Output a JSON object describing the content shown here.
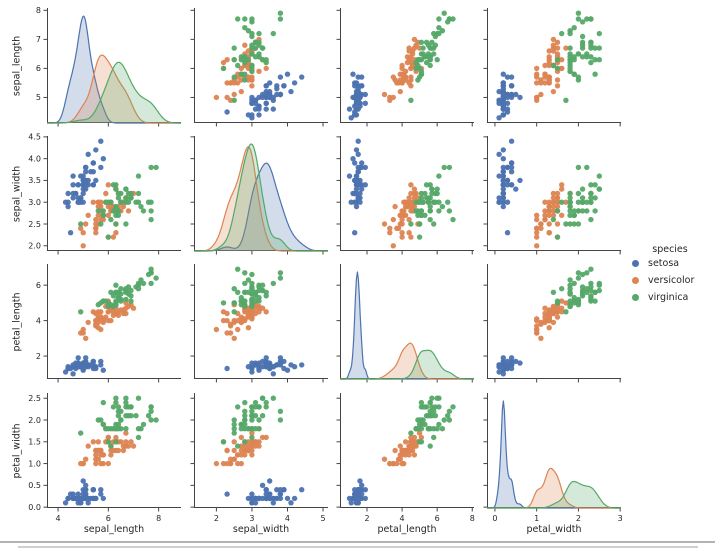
{
  "chart_data": {
    "type": "scatter-matrix",
    "diagonal": "kde",
    "variables": [
      "sepal_length",
      "sepal_width",
      "petal_length",
      "petal_width"
    ],
    "legend": {
      "title": "species",
      "entries": [
        {
          "label": "setosa",
          "color": "#4c72b0"
        },
        {
          "label": "versicolor",
          "color": "#dd8452"
        },
        {
          "label": "virginica",
          "color": "#55a868"
        }
      ]
    },
    "axes": {
      "sepal_length": {
        "xlim": [
          3.56,
          8.89
        ],
        "ylim": [
          4.12,
          8.08
        ],
        "xticks": [
          "4",
          "6",
          "8"
        ],
        "yticks": [
          "5",
          "6",
          "7",
          "8"
        ]
      },
      "sepal_width": {
        "xlim": [
          1.37,
          5.14
        ],
        "ylim": [
          1.88,
          4.52
        ],
        "xticks": [
          "2",
          "3",
          "4",
          "5"
        ],
        "yticks": [
          "2.0",
          "2.5",
          "3.0",
          "3.5",
          "4.0",
          "4.5"
        ]
      },
      "petal_length": {
        "xlim": [
          0.46,
          8.1
        ],
        "ylim": [
          0.705,
          7.195
        ],
        "xticks": [
          "2",
          "4",
          "6",
          "8"
        ],
        "yticks": [
          "2",
          "4",
          "6"
        ]
      },
      "petal_width": {
        "xlim": [
          -0.19,
          3.02
        ],
        "ylim": [
          -0.02,
          2.62
        ],
        "xticks": [
          "0",
          "1",
          "2",
          "3"
        ],
        "yticks": [
          "0.0",
          "0.5",
          "1.0",
          "1.5",
          "2.0",
          "2.5"
        ]
      }
    },
    "data": {
      "columns": [
        "sepal_length",
        "sepal_width",
        "petal_length",
        "petal_width",
        "species"
      ],
      "rows": [
        [
          5.1,
          3.5,
          1.4,
          0.2,
          "setosa"
        ],
        [
          4.9,
          3.0,
          1.4,
          0.2,
          "setosa"
        ],
        [
          4.7,
          3.2,
          1.3,
          0.2,
          "setosa"
        ],
        [
          4.6,
          3.1,
          1.5,
          0.2,
          "setosa"
        ],
        [
          5.0,
          3.6,
          1.4,
          0.2,
          "setosa"
        ],
        [
          5.4,
          3.9,
          1.7,
          0.4,
          "setosa"
        ],
        [
          4.6,
          3.4,
          1.4,
          0.3,
          "setosa"
        ],
        [
          5.0,
          3.4,
          1.5,
          0.2,
          "setosa"
        ],
        [
          4.4,
          2.9,
          1.4,
          0.2,
          "setosa"
        ],
        [
          4.9,
          3.1,
          1.5,
          0.1,
          "setosa"
        ],
        [
          5.4,
          3.7,
          1.5,
          0.2,
          "setosa"
        ],
        [
          4.8,
          3.4,
          1.6,
          0.2,
          "setosa"
        ],
        [
          4.8,
          3.0,
          1.4,
          0.1,
          "setosa"
        ],
        [
          4.3,
          3.0,
          1.1,
          0.1,
          "setosa"
        ],
        [
          5.8,
          4.0,
          1.2,
          0.2,
          "setosa"
        ],
        [
          5.7,
          4.4,
          1.5,
          0.4,
          "setosa"
        ],
        [
          5.4,
          3.9,
          1.3,
          0.4,
          "setosa"
        ],
        [
          5.1,
          3.5,
          1.4,
          0.3,
          "setosa"
        ],
        [
          5.7,
          3.8,
          1.7,
          0.3,
          "setosa"
        ],
        [
          5.1,
          3.8,
          1.5,
          0.3,
          "setosa"
        ],
        [
          5.4,
          3.4,
          1.7,
          0.2,
          "setosa"
        ],
        [
          5.1,
          3.7,
          1.5,
          0.4,
          "setosa"
        ],
        [
          4.6,
          3.6,
          1.0,
          0.2,
          "setosa"
        ],
        [
          5.1,
          3.3,
          1.7,
          0.5,
          "setosa"
        ],
        [
          4.8,
          3.4,
          1.9,
          0.2,
          "setosa"
        ],
        [
          5.0,
          3.0,
          1.6,
          0.2,
          "setosa"
        ],
        [
          5.0,
          3.4,
          1.6,
          0.4,
          "setosa"
        ],
        [
          5.2,
          3.5,
          1.5,
          0.2,
          "setosa"
        ],
        [
          5.2,
          3.4,
          1.4,
          0.2,
          "setosa"
        ],
        [
          4.7,
          3.2,
          1.6,
          0.2,
          "setosa"
        ],
        [
          4.8,
          3.1,
          1.6,
          0.2,
          "setosa"
        ],
        [
          5.4,
          3.4,
          1.5,
          0.4,
          "setosa"
        ],
        [
          5.2,
          4.1,
          1.5,
          0.1,
          "setosa"
        ],
        [
          5.5,
          4.2,
          1.4,
          0.2,
          "setosa"
        ],
        [
          4.9,
          3.1,
          1.5,
          0.2,
          "setosa"
        ],
        [
          5.0,
          3.2,
          1.2,
          0.2,
          "setosa"
        ],
        [
          5.5,
          3.5,
          1.3,
          0.2,
          "setosa"
        ],
        [
          4.9,
          3.6,
          1.4,
          0.1,
          "setosa"
        ],
        [
          4.4,
          3.0,
          1.3,
          0.2,
          "setosa"
        ],
        [
          5.1,
          3.4,
          1.5,
          0.2,
          "setosa"
        ],
        [
          5.0,
          3.5,
          1.3,
          0.3,
          "setosa"
        ],
        [
          4.5,
          2.3,
          1.3,
          0.3,
          "setosa"
        ],
        [
          4.4,
          3.2,
          1.3,
          0.2,
          "setosa"
        ],
        [
          5.0,
          3.5,
          1.6,
          0.6,
          "setosa"
        ],
        [
          5.1,
          3.8,
          1.9,
          0.4,
          "setosa"
        ],
        [
          4.8,
          3.0,
          1.4,
          0.3,
          "setosa"
        ],
        [
          5.1,
          3.8,
          1.6,
          0.2,
          "setosa"
        ],
        [
          4.6,
          3.2,
          1.4,
          0.2,
          "setosa"
        ],
        [
          5.3,
          3.7,
          1.5,
          0.2,
          "setosa"
        ],
        [
          5.0,
          3.3,
          1.4,
          0.2,
          "setosa"
        ],
        [
          7.0,
          3.2,
          4.7,
          1.4,
          "versicolor"
        ],
        [
          6.4,
          3.2,
          4.5,
          1.5,
          "versicolor"
        ],
        [
          6.9,
          3.1,
          4.9,
          1.5,
          "versicolor"
        ],
        [
          5.5,
          2.3,
          4.0,
          1.3,
          "versicolor"
        ],
        [
          6.5,
          2.8,
          4.6,
          1.5,
          "versicolor"
        ],
        [
          5.7,
          2.8,
          4.5,
          1.3,
          "versicolor"
        ],
        [
          6.3,
          3.3,
          4.7,
          1.6,
          "versicolor"
        ],
        [
          4.9,
          2.4,
          3.3,
          1.0,
          "versicolor"
        ],
        [
          6.6,
          2.9,
          4.6,
          1.3,
          "versicolor"
        ],
        [
          5.2,
          2.7,
          3.9,
          1.4,
          "versicolor"
        ],
        [
          5.0,
          2.0,
          3.5,
          1.0,
          "versicolor"
        ],
        [
          5.9,
          3.0,
          4.2,
          1.5,
          "versicolor"
        ],
        [
          6.0,
          2.2,
          4.0,
          1.0,
          "versicolor"
        ],
        [
          6.1,
          2.9,
          4.7,
          1.4,
          "versicolor"
        ],
        [
          5.6,
          2.9,
          3.6,
          1.3,
          "versicolor"
        ],
        [
          6.7,
          3.1,
          4.4,
          1.4,
          "versicolor"
        ],
        [
          5.6,
          3.0,
          4.5,
          1.5,
          "versicolor"
        ],
        [
          5.8,
          2.7,
          4.1,
          1.0,
          "versicolor"
        ],
        [
          6.2,
          2.2,
          4.5,
          1.5,
          "versicolor"
        ],
        [
          5.6,
          2.5,
          3.9,
          1.1,
          "versicolor"
        ],
        [
          5.9,
          3.2,
          4.8,
          1.8,
          "versicolor"
        ],
        [
          6.1,
          2.8,
          4.0,
          1.3,
          "versicolor"
        ],
        [
          6.3,
          2.5,
          4.9,
          1.5,
          "versicolor"
        ],
        [
          6.1,
          2.8,
          4.7,
          1.2,
          "versicolor"
        ],
        [
          6.4,
          2.9,
          4.3,
          1.3,
          "versicolor"
        ],
        [
          6.6,
          3.0,
          4.4,
          1.4,
          "versicolor"
        ],
        [
          6.8,
          2.8,
          4.8,
          1.4,
          "versicolor"
        ],
        [
          6.7,
          3.0,
          5.0,
          1.7,
          "versicolor"
        ],
        [
          6.0,
          2.9,
          4.5,
          1.5,
          "versicolor"
        ],
        [
          5.7,
          2.6,
          3.5,
          1.0,
          "versicolor"
        ],
        [
          5.5,
          2.4,
          3.8,
          1.1,
          "versicolor"
        ],
        [
          5.5,
          2.4,
          3.7,
          1.0,
          "versicolor"
        ],
        [
          5.8,
          2.7,
          3.9,
          1.2,
          "versicolor"
        ],
        [
          6.0,
          2.7,
          5.1,
          1.6,
          "versicolor"
        ],
        [
          5.4,
          3.0,
          4.5,
          1.5,
          "versicolor"
        ],
        [
          6.0,
          3.4,
          4.5,
          1.6,
          "versicolor"
        ],
        [
          6.7,
          3.1,
          4.7,
          1.5,
          "versicolor"
        ],
        [
          6.3,
          2.3,
          4.4,
          1.3,
          "versicolor"
        ],
        [
          5.6,
          3.0,
          4.1,
          1.3,
          "versicolor"
        ],
        [
          5.5,
          2.5,
          4.0,
          1.3,
          "versicolor"
        ],
        [
          5.5,
          2.6,
          4.4,
          1.2,
          "versicolor"
        ],
        [
          6.1,
          3.0,
          4.6,
          1.4,
          "versicolor"
        ],
        [
          5.8,
          2.6,
          4.0,
          1.2,
          "versicolor"
        ],
        [
          5.0,
          2.3,
          3.3,
          1.0,
          "versicolor"
        ],
        [
          5.6,
          2.7,
          4.2,
          1.3,
          "versicolor"
        ],
        [
          5.7,
          3.0,
          4.2,
          1.2,
          "versicolor"
        ],
        [
          5.7,
          2.9,
          4.2,
          1.3,
          "versicolor"
        ],
        [
          6.2,
          2.9,
          4.3,
          1.3,
          "versicolor"
        ],
        [
          5.1,
          2.5,
          3.0,
          1.1,
          "versicolor"
        ],
        [
          5.7,
          2.8,
          4.1,
          1.3,
          "versicolor"
        ],
        [
          6.3,
          3.3,
          6.0,
          2.5,
          "virginica"
        ],
        [
          5.8,
          2.7,
          5.1,
          1.9,
          "virginica"
        ],
        [
          7.1,
          3.0,
          5.9,
          2.1,
          "virginica"
        ],
        [
          6.3,
          2.9,
          5.6,
          1.8,
          "virginica"
        ],
        [
          6.5,
          3.0,
          5.8,
          2.2,
          "virginica"
        ],
        [
          7.6,
          3.0,
          6.6,
          2.1,
          "virginica"
        ],
        [
          4.9,
          2.5,
          4.5,
          1.7,
          "virginica"
        ],
        [
          7.3,
          2.9,
          6.3,
          1.8,
          "virginica"
        ],
        [
          6.7,
          2.5,
          5.8,
          1.8,
          "virginica"
        ],
        [
          7.2,
          3.6,
          6.1,
          2.5,
          "virginica"
        ],
        [
          6.5,
          3.2,
          5.1,
          2.0,
          "virginica"
        ],
        [
          6.4,
          2.7,
          5.3,
          1.9,
          "virginica"
        ],
        [
          6.8,
          3.0,
          5.5,
          2.1,
          "virginica"
        ],
        [
          5.7,
          2.5,
          5.0,
          2.0,
          "virginica"
        ],
        [
          5.8,
          2.8,
          5.1,
          2.4,
          "virginica"
        ],
        [
          6.4,
          3.2,
          5.3,
          2.3,
          "virginica"
        ],
        [
          6.5,
          3.0,
          5.5,
          1.8,
          "virginica"
        ],
        [
          7.7,
          3.8,
          6.7,
          2.2,
          "virginica"
        ],
        [
          7.7,
          2.6,
          6.9,
          2.3,
          "virginica"
        ],
        [
          6.0,
          2.2,
          5.0,
          1.5,
          "virginica"
        ],
        [
          6.9,
          3.2,
          5.7,
          2.3,
          "virginica"
        ],
        [
          5.6,
          2.8,
          4.9,
          2.0,
          "virginica"
        ],
        [
          7.7,
          2.8,
          6.7,
          2.0,
          "virginica"
        ],
        [
          6.3,
          2.7,
          4.9,
          1.8,
          "virginica"
        ],
        [
          6.7,
          3.3,
          5.7,
          2.1,
          "virginica"
        ],
        [
          7.2,
          3.2,
          6.0,
          1.8,
          "virginica"
        ],
        [
          6.2,
          2.8,
          4.8,
          1.8,
          "virginica"
        ],
        [
          6.1,
          3.0,
          4.9,
          1.8,
          "virginica"
        ],
        [
          6.4,
          2.8,
          5.6,
          2.1,
          "virginica"
        ],
        [
          7.2,
          3.0,
          5.8,
          1.6,
          "virginica"
        ],
        [
          7.4,
          2.8,
          6.1,
          1.9,
          "virginica"
        ],
        [
          7.9,
          3.8,
          6.4,
          2.0,
          "virginica"
        ],
        [
          6.4,
          2.8,
          5.6,
          2.2,
          "virginica"
        ],
        [
          6.3,
          2.8,
          5.1,
          1.5,
          "virginica"
        ],
        [
          6.1,
          2.6,
          5.6,
          1.4,
          "virginica"
        ],
        [
          7.7,
          3.0,
          6.1,
          2.3,
          "virginica"
        ],
        [
          6.3,
          3.4,
          5.6,
          2.4,
          "virginica"
        ],
        [
          6.4,
          3.1,
          5.5,
          1.8,
          "virginica"
        ],
        [
          6.0,
          3.0,
          4.8,
          1.8,
          "virginica"
        ],
        [
          6.9,
          3.1,
          5.4,
          2.1,
          "virginica"
        ],
        [
          6.7,
          3.1,
          5.6,
          2.4,
          "virginica"
        ],
        [
          6.9,
          3.1,
          5.1,
          2.3,
          "virginica"
        ],
        [
          5.8,
          2.7,
          5.1,
          1.9,
          "virginica"
        ],
        [
          6.8,
          3.2,
          5.9,
          2.3,
          "virginica"
        ],
        [
          6.7,
          3.3,
          5.7,
          2.5,
          "virginica"
        ],
        [
          6.7,
          3.0,
          5.2,
          2.3,
          "virginica"
        ],
        [
          6.3,
          2.5,
          5.0,
          1.9,
          "virginica"
        ],
        [
          6.5,
          3.0,
          5.2,
          2.0,
          "virginica"
        ],
        [
          6.2,
          3.4,
          5.4,
          2.3,
          "virginica"
        ],
        [
          5.9,
          3.0,
          5.1,
          1.8,
          "virginica"
        ]
      ]
    },
    "style": {
      "spine_color": "#444444",
      "text_color": "#262626",
      "kde_fill_opacity": 0.25,
      "bottom_border_color": "#b3b3b3",
      "bottom_divider_color": "#cfcfcf"
    }
  }
}
